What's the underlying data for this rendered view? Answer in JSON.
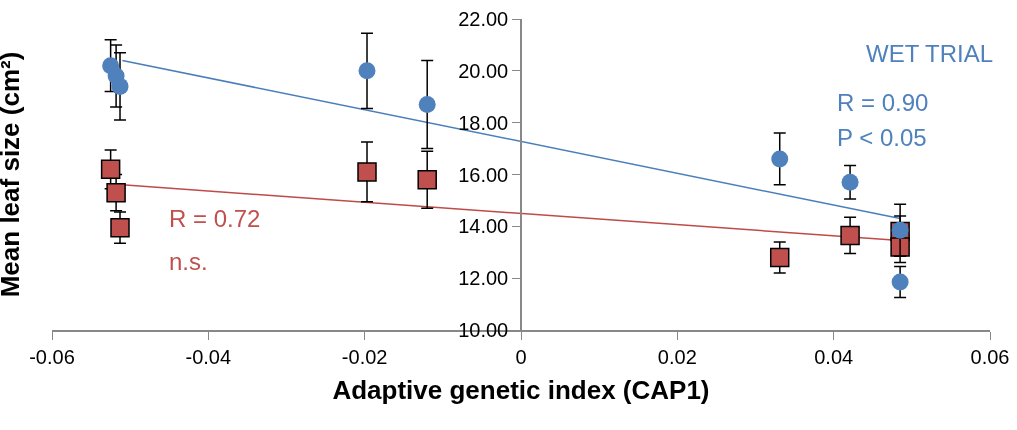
{
  "chart_data": {
    "type": "scatter",
    "xlabel": "Adaptive genetic index (CAP1)",
    "ylabel": "Mean leaf size (cm²)",
    "xlim": [
      -0.06,
      0.06
    ],
    "xticks": [
      -0.06,
      -0.04,
      -0.02,
      0,
      0.02,
      0.04,
      0.06
    ],
    "ylim": [
      10,
      22
    ],
    "yticks": [
      {
        "value": 10,
        "label": "10.00"
      },
      {
        "value": 12,
        "label": "12.00"
      },
      {
        "value": 14,
        "label": "14.00"
      },
      {
        "value": 16,
        "label": "16.00"
      },
      {
        "value": 18,
        "label": "18.00"
      },
      {
        "value": 20,
        "label": "20.00"
      },
      {
        "value": 22,
        "label": "22.00"
      }
    ],
    "grid": false,
    "series": [
      {
        "marker": "square",
        "color": "#c0504d",
        "x": [
          -0.0525,
          -0.0518,
          -0.0513,
          -0.0197,
          -0.012,
          0.0331,
          0.0421,
          0.0485,
          0.0485
        ],
        "values": [
          16.2,
          15.3,
          13.95,
          16.1,
          15.8,
          12.8,
          13.65,
          13.8,
          13.2
        ],
        "errors": [
          0.75,
          0.7,
          0.6,
          1.15,
          1.1,
          0.6,
          0.7,
          0.6,
          0.6
        ]
      },
      {
        "marker": "circle",
        "color": "#4f81bd",
        "x": [
          -0.0525,
          -0.0518,
          -0.0513,
          -0.0197,
          -0.012,
          0.0331,
          0.0421,
          0.0485,
          0.0485
        ],
        "values": [
          20.2,
          19.8,
          19.4,
          20.0,
          18.7,
          16.6,
          15.7,
          13.85,
          11.85
        ],
        "errors": [
          1.0,
          1.2,
          1.3,
          1.45,
          1.7,
          1.0,
          0.65,
          1.0,
          0.6
        ]
      },
      {
        "type": "line",
        "marker": "none",
        "color": "#4a7ebb",
        "x": [
          -0.051,
          0.0485
        ],
        "values": [
          20.4,
          14.3
        ]
      },
      {
        "type": "line",
        "marker": "none",
        "color": "#be4b48",
        "x": [
          -0.051,
          0.0485
        ],
        "values": [
          15.6,
          13.45
        ]
      }
    ],
    "annotations": [
      "WET TRIAL",
      "R = 0.90",
      "P < 0.05",
      "R = 0.72",
      "n.s."
    ]
  }
}
